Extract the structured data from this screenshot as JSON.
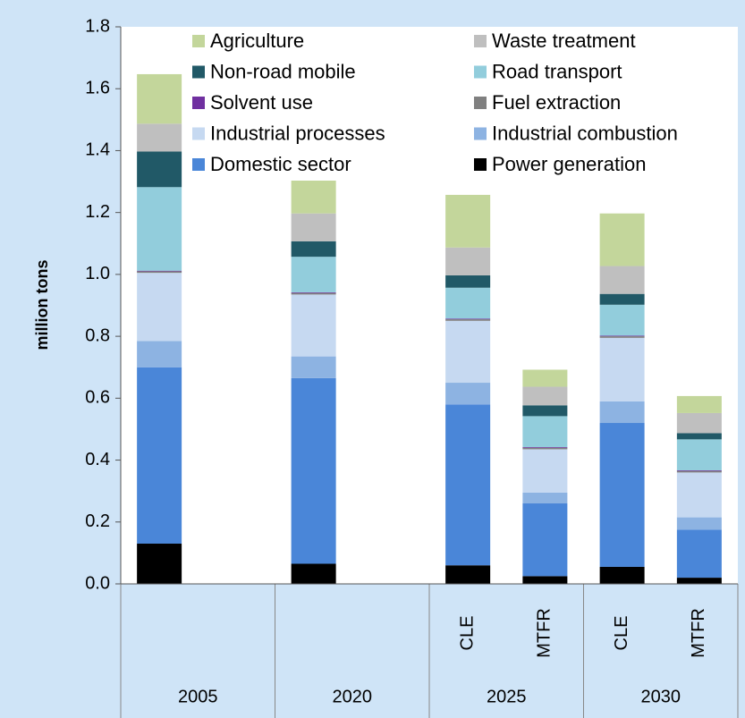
{
  "chart_data": {
    "type": "stacked_bar",
    "ylabel": "million tons",
    "categories": [
      null,
      null,
      "CLE",
      "MTFR",
      "CLE",
      "MTFR"
    ],
    "groups": [
      "2005",
      "2020",
      "2025",
      "2025",
      "2030",
      "2030"
    ],
    "ylim": [
      0,
      1.8
    ],
    "yticks": [
      {
        "value": 0,
        "label": "0.0"
      },
      0.2,
      0.4,
      0.6,
      0.8,
      {
        "value": 1,
        "label": "1.0"
      },
      1.2,
      1.4,
      1.6,
      1.8
    ],
    "series": [
      {
        "name": "Agriculture",
        "color": "#c3d69b",
        "values": [
          0.16,
          0.17,
          0.17,
          0.055,
          0.17,
          0.055
        ]
      },
      {
        "name": "Waste treatment",
        "color": "#bfbfbf",
        "values": [
          0.09,
          0.09,
          0.09,
          0.06,
          0.09,
          0.065
        ]
      },
      {
        "name": "Non-road mobile",
        "color": "#215967",
        "values": [
          0.115,
          0.05,
          0.04,
          0.035,
          0.035,
          0.02
        ]
      },
      {
        "name": "Road transport",
        "color": "#92cddc",
        "values": [
          0.27,
          0.115,
          0.1,
          0.1,
          0.1,
          0.1
        ]
      },
      {
        "name": "Solvent use",
        "color": "#7030a0",
        "values": [
          0.002,
          0.002,
          0.002,
          0.002,
          0.002,
          0.002
        ]
      },
      {
        "name": "Fuel extraction",
        "color": "#808080",
        "values": [
          0.005,
          0.005,
          0.005,
          0.005,
          0.005,
          0.005
        ]
      },
      {
        "name": "Industrial processes",
        "color": "#c6d9f1",
        "values": [
          0.22,
          0.2,
          0.2,
          0.14,
          0.205,
          0.145
        ]
      },
      {
        "name": "Industrial combustion",
        "color": "#8db3e2",
        "values": [
          0.085,
          0.07,
          0.07,
          0.035,
          0.07,
          0.04
        ]
      },
      {
        "name": "Domestic sector",
        "color": "#4a86d8",
        "values": [
          0.57,
          0.6,
          0.52,
          0.235,
          0.465,
          0.155
        ]
      },
      {
        "name": "Power generation",
        "color": "#000000",
        "values": [
          0.13,
          0.065,
          0.06,
          0.025,
          0.055,
          0.02
        ]
      }
    ]
  }
}
